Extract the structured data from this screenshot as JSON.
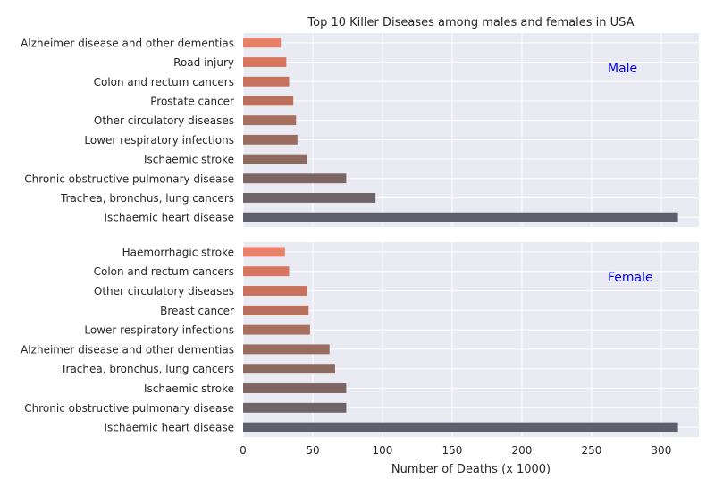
{
  "chart_data": {
    "type": "bar",
    "orientation": "horizontal",
    "title": "Top 10 Killer Diseases among males and females in USA",
    "xlabel": "Number of Deaths (x 1000)",
    "xlim": [
      0,
      327
    ],
    "xticks": [
      0,
      50,
      100,
      150,
      200,
      250,
      300
    ],
    "grid": true,
    "panels": [
      {
        "label": "Male",
        "label_color": "#0000ff",
        "categories": [
          "Ischaemic heart disease",
          "Trachea, bronchus, lung cancers",
          "Chronic obstructive pulmonary disease",
          "Ischaemic stroke",
          "Lower respiratory infections",
          "Other circulatory diseases",
          "Prostate cancer",
          "Colon and rectum cancers",
          "Road injury",
          "Alzheimer disease and other dementias"
        ],
        "values": [
          312,
          95,
          74,
          46,
          39,
          38,
          36,
          33,
          31,
          27
        ]
      },
      {
        "label": "Female",
        "label_color": "#0000ff",
        "categories": [
          "Ischaemic heart disease",
          "Chronic obstructive pulmonary disease",
          "Ischaemic stroke",
          "Trachea, bronchus, lung cancers",
          "Alzheimer disease and other dementias",
          "Lower respiratory infections",
          "Breast cancer",
          "Other circulatory diseases",
          "Colon and rectum cancers",
          "Haemorrhagic stroke"
        ],
        "values": [
          312,
          74,
          74,
          66,
          62,
          48,
          47,
          46,
          33,
          30
        ]
      }
    ],
    "colors": {
      "background": "#eaeaf2",
      "grid": "#ffffff",
      "bar_gradient": [
        "#5f5f6e",
        "#6e6468",
        "#7d6662",
        "#8b6a60",
        "#9a6c5e",
        "#a96f5d",
        "#b8705c",
        "#c8725c",
        "#d8755e",
        "#e8806a"
      ]
    }
  }
}
